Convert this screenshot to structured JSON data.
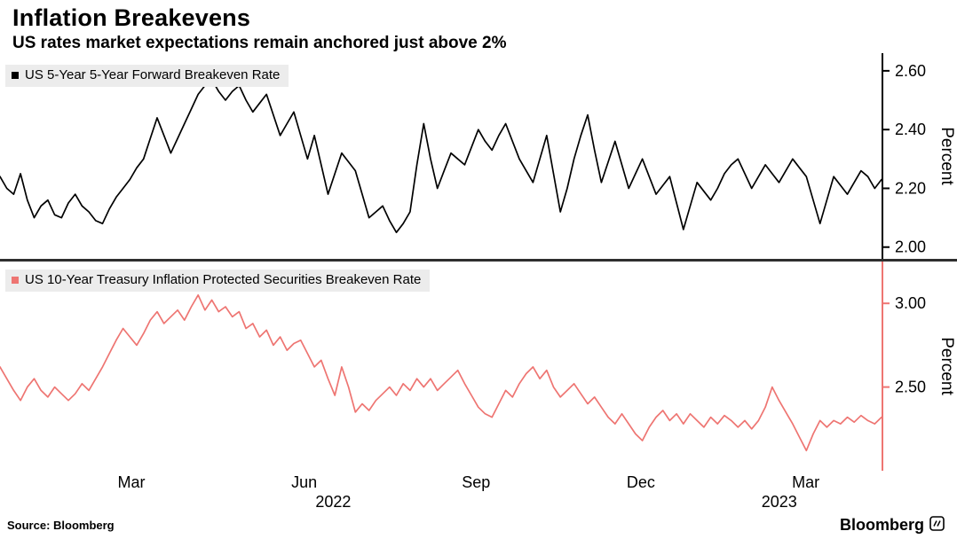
{
  "header": {
    "title": "Inflation Breakevens",
    "subtitle": "US rates market expectations remain anchored just above 2%"
  },
  "footer": {
    "source": "Source: Bloomberg",
    "brand": "Bloomberg"
  },
  "chart_data": {
    "type": "line",
    "grid": false,
    "legend_position": "top-left-inside",
    "x_axis": {
      "ticks": [
        {
          "label": "Mar",
          "pos": 0.149
        },
        {
          "label": "Jun",
          "pos": 0.345
        },
        {
          "label": "Sep",
          "pos": 0.54
        },
        {
          "label": "Dec",
          "pos": 0.727
        },
        {
          "label": "Mar",
          "pos": 0.914
        }
      ],
      "years": [
        {
          "label": "2022",
          "pos": 0.378
        },
        {
          "label": "2023",
          "pos": 0.884
        }
      ]
    },
    "panels": [
      {
        "name": "US 5-Year 5-Year Forward Breakeven Rate",
        "color": "#000000",
        "ylabel": "Percent",
        "ylim": [
          1.96,
          2.66
        ],
        "yticks": [
          2.0,
          2.2,
          2.4,
          2.6
        ],
        "ytick_labels": [
          "2.00",
          "2.20",
          "2.40",
          "2.60"
        ],
        "values": [
          2.24,
          2.2,
          2.18,
          2.25,
          2.16,
          2.1,
          2.14,
          2.16,
          2.11,
          2.1,
          2.15,
          2.18,
          2.14,
          2.12,
          2.09,
          2.08,
          2.13,
          2.17,
          2.2,
          2.23,
          2.27,
          2.3,
          2.37,
          2.44,
          2.38,
          2.32,
          2.37,
          2.42,
          2.47,
          2.52,
          2.55,
          2.57,
          2.53,
          2.5,
          2.53,
          2.55,
          2.5,
          2.46,
          2.49,
          2.52,
          2.45,
          2.38,
          2.42,
          2.46,
          2.38,
          2.3,
          2.38,
          2.28,
          2.18,
          2.25,
          2.32,
          2.29,
          2.26,
          2.18,
          2.1,
          2.12,
          2.14,
          2.09,
          2.05,
          2.08,
          2.12,
          2.28,
          2.42,
          2.3,
          2.2,
          2.26,
          2.32,
          2.3,
          2.28,
          2.34,
          2.4,
          2.36,
          2.33,
          2.38,
          2.42,
          2.36,
          2.3,
          2.26,
          2.22,
          2.3,
          2.38,
          2.25,
          2.12,
          2.2,
          2.3,
          2.38,
          2.45,
          2.33,
          2.22,
          2.29,
          2.36,
          2.28,
          2.2,
          2.25,
          2.3,
          2.24,
          2.18,
          2.21,
          2.24,
          2.15,
          2.06,
          2.14,
          2.22,
          2.19,
          2.16,
          2.2,
          2.25,
          2.28,
          2.3,
          2.25,
          2.2,
          2.24,
          2.28,
          2.25,
          2.22,
          2.26,
          2.3,
          2.27,
          2.24,
          2.16,
          2.08,
          2.16,
          2.24,
          2.21,
          2.18,
          2.22,
          2.26,
          2.24,
          2.2,
          2.23
        ]
      },
      {
        "name": "US 10-Year Treasury Inflation Protected Securities Breakeven Rate",
        "color": "#ee7572",
        "ylabel": "Percent",
        "ylim": [
          2.0,
          3.25
        ],
        "yticks": [
          2.5,
          3.0
        ],
        "ytick_labels": [
          "2.50",
          "3.00"
        ],
        "values": [
          2.62,
          2.55,
          2.48,
          2.42,
          2.5,
          2.55,
          2.48,
          2.44,
          2.5,
          2.46,
          2.42,
          2.46,
          2.52,
          2.48,
          2.55,
          2.62,
          2.7,
          2.78,
          2.85,
          2.8,
          2.75,
          2.82,
          2.9,
          2.95,
          2.88,
          2.92,
          2.96,
          2.9,
          2.98,
          3.05,
          2.96,
          3.02,
          2.95,
          2.98,
          2.92,
          2.95,
          2.85,
          2.88,
          2.8,
          2.84,
          2.75,
          2.8,
          2.72,
          2.76,
          2.78,
          2.7,
          2.62,
          2.66,
          2.55,
          2.45,
          2.62,
          2.5,
          2.35,
          2.4,
          2.36,
          2.42,
          2.46,
          2.5,
          2.45,
          2.52,
          2.48,
          2.55,
          2.5,
          2.55,
          2.48,
          2.52,
          2.56,
          2.6,
          2.52,
          2.45,
          2.38,
          2.34,
          2.32,
          2.4,
          2.48,
          2.44,
          2.52,
          2.58,
          2.62,
          2.55,
          2.6,
          2.5,
          2.44,
          2.48,
          2.52,
          2.46,
          2.4,
          2.44,
          2.38,
          2.32,
          2.28,
          2.34,
          2.28,
          2.22,
          2.18,
          2.26,
          2.32,
          2.36,
          2.3,
          2.34,
          2.28,
          2.34,
          2.3,
          2.26,
          2.32,
          2.28,
          2.33,
          2.3,
          2.26,
          2.3,
          2.25,
          2.3,
          2.38,
          2.5,
          2.42,
          2.35,
          2.28,
          2.2,
          2.12,
          2.22,
          2.3,
          2.26,
          2.3,
          2.28,
          2.32,
          2.29,
          2.33,
          2.3,
          2.28,
          2.32
        ]
      }
    ]
  }
}
